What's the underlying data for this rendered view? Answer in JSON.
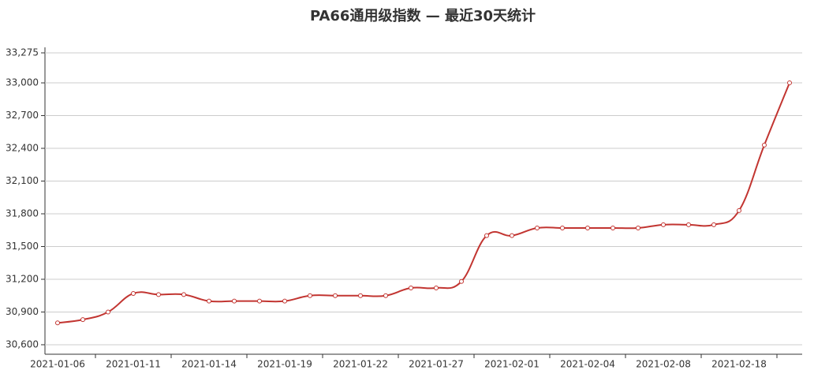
{
  "chart_data": {
    "type": "line",
    "title": "PA66通用级指数   —   最近30天统计",
    "categories": [
      "2021-01-06",
      null,
      null,
      "2021-01-11",
      null,
      null,
      "2021-01-14",
      null,
      null,
      "2021-01-19",
      null,
      null,
      "2021-01-22",
      null,
      null,
      "2021-01-27",
      null,
      null,
      "2021-02-01",
      null,
      null,
      "2021-02-04",
      null,
      null,
      "2021-02-08",
      null,
      null,
      "2021-02-18",
      null,
      null
    ],
    "series": [
      {
        "color": "#c23531",
        "values": [
          30800,
          30830,
          30900,
          31070,
          31060,
          31060,
          31000,
          31000,
          31000,
          31000,
          31050,
          31050,
          31050,
          31050,
          31120,
          31120,
          31180,
          31600,
          31600,
          31670,
          31670,
          31670,
          31670,
          31670,
          31700,
          31700,
          31700,
          31830,
          32430,
          33000
        ]
      }
    ],
    "ylim": [
      30513,
      33275
    ],
    "yticks": [
      {
        "value": 30600,
        "label": "30,600"
      },
      {
        "value": 30900,
        "label": "30,900"
      },
      {
        "value": 31200,
        "label": "31,200"
      },
      {
        "value": 31500,
        "label": "31,500"
      },
      {
        "value": 31800,
        "label": "31,800"
      },
      {
        "value": 32100,
        "label": "32,100"
      },
      {
        "value": 32400,
        "label": "32,400"
      },
      {
        "value": 32700,
        "label": "32,700"
      },
      {
        "value": 33000,
        "label": "33,000"
      },
      {
        "value": 33275,
        "label": "33,275"
      }
    ],
    "grid": true
  }
}
